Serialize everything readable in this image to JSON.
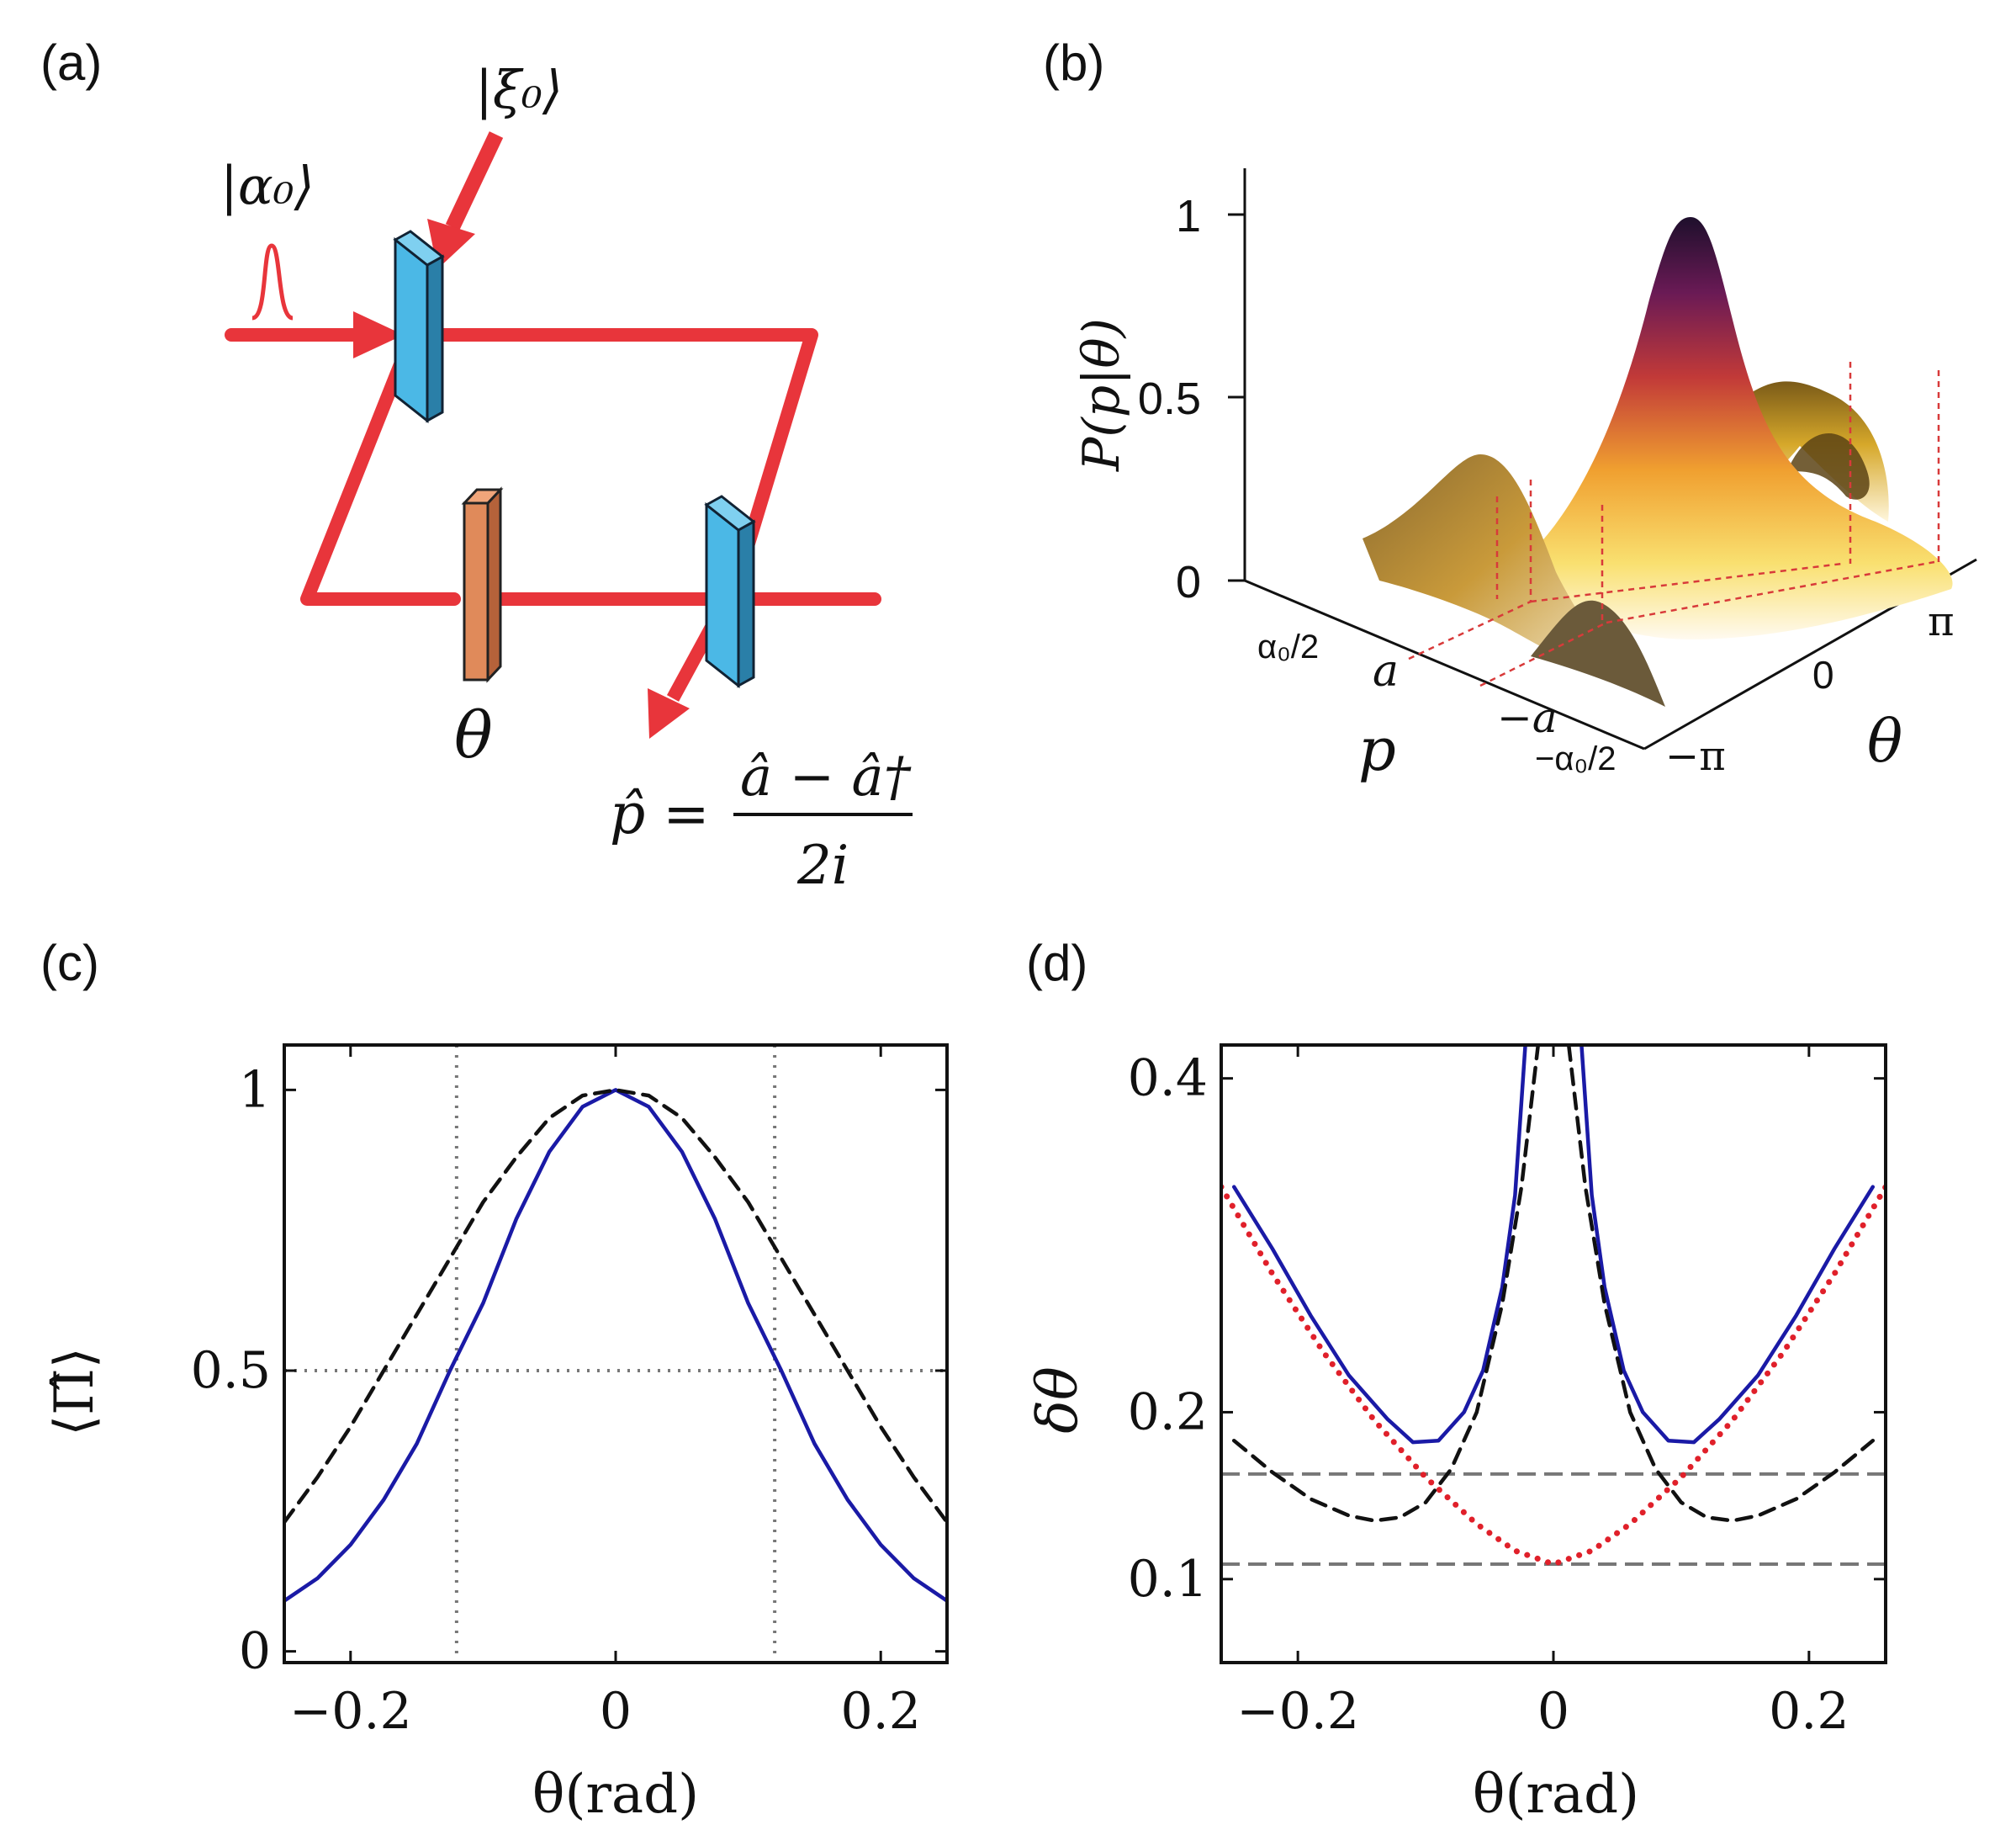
{
  "panels": {
    "a": {
      "label": "(a)",
      "input_state": "|α₀⟩",
      "squeezed_state": "|ξ₀⟩",
      "phase_label": "θ",
      "operator_lhs": "p̂ =",
      "operator_num": "â − â†",
      "operator_den": "2i"
    },
    "b": {
      "label": "(b)",
      "z_axis_label": "P(p|θ)",
      "z_ticks": [
        "1",
        "0.5",
        "0"
      ],
      "p_axis_label": "p",
      "p_ticks": [
        "α₀/2",
        "a",
        "−a",
        "−α₀/2"
      ],
      "theta_axis_label": "θ",
      "theta_ticks": [
        "π",
        "0",
        "−π"
      ]
    },
    "c": {
      "label": "(c)"
    },
    "d": {
      "label": "(d)"
    }
  },
  "colors": {
    "beam": "#e8353b",
    "splitter": "#4bb8e6",
    "phase_plate": "#e08a5a",
    "blue_curve": "#1a1aa6",
    "red_dotted": "#e0202a",
    "gray_dotted": "#777777"
  },
  "chart_data": [
    {
      "id": "c",
      "type": "line",
      "xlabel": "θ(rad)",
      "ylabel": "⟨Π̂⟩",
      "xlim": [
        -0.25,
        0.25
      ],
      "ylim": [
        -0.02,
        1.08
      ],
      "xticks": [
        -0.2,
        0,
        0.2
      ],
      "xtick_labels": [
        "−0.2",
        "0",
        "0.2"
      ],
      "yticks": [
        0,
        0.5,
        1
      ],
      "ytick_labels": [
        "0",
        "0.5",
        "1"
      ],
      "series": [
        {
          "name": "solid",
          "style": "solid",
          "color": "#1a1aa6",
          "x": [
            -0.25,
            -0.225,
            -0.2,
            -0.175,
            -0.15,
            -0.125,
            -0.1,
            -0.075,
            -0.05,
            -0.025,
            0,
            0.025,
            0.05,
            0.075,
            0.1,
            0.125,
            0.15,
            0.175,
            0.2,
            0.225,
            0.25
          ],
          "y": [
            0.09,
            0.13,
            0.19,
            0.27,
            0.37,
            0.5,
            0.62,
            0.77,
            0.89,
            0.97,
            1.0,
            0.97,
            0.89,
            0.77,
            0.62,
            0.5,
            0.37,
            0.27,
            0.19,
            0.13,
            0.09
          ]
        },
        {
          "name": "dashed",
          "style": "dashed",
          "color": "#111111",
          "x": [
            -0.25,
            -0.225,
            -0.2,
            -0.175,
            -0.15,
            -0.125,
            -0.1,
            -0.075,
            -0.05,
            -0.025,
            0,
            0.025,
            0.05,
            0.075,
            0.1,
            0.125,
            0.15,
            0.175,
            0.2,
            0.225,
            0.25
          ],
          "y": [
            0.23,
            0.31,
            0.4,
            0.5,
            0.6,
            0.7,
            0.8,
            0.88,
            0.95,
            0.99,
            1.0,
            0.99,
            0.95,
            0.88,
            0.8,
            0.7,
            0.6,
            0.5,
            0.4,
            0.31,
            0.23
          ]
        }
      ],
      "reference_lines": [
        {
          "orientation": "horizontal",
          "value": 0.5
        },
        {
          "orientation": "vertical",
          "value": -0.12
        },
        {
          "orientation": "vertical",
          "value": 0.12
        }
      ]
    },
    {
      "id": "d",
      "type": "line",
      "xlabel": "θ(rad)",
      "ylabel": "δθ",
      "xlim": [
        -0.26,
        0.26
      ],
      "ylim": [
        0.05,
        0.42
      ],
      "xticks": [
        -0.2,
        0,
        0.2
      ],
      "xtick_labels": [
        "−0.2",
        "0",
        "0.2"
      ],
      "yticks": [
        0.1,
        0.2,
        0.4
      ],
      "ytick_labels": [
        "0.1",
        "0.2",
        "0.4"
      ],
      "series": [
        {
          "name": "solid-left",
          "style": "solid",
          "color": "#1a1aa6",
          "x": [
            -0.25,
            -0.22,
            -0.19,
            -0.16,
            -0.13,
            -0.11,
            -0.09,
            -0.07,
            -0.055,
            -0.04,
            -0.03,
            -0.022
          ],
          "y": [
            0.335,
            0.298,
            0.258,
            0.222,
            0.196,
            0.182,
            0.183,
            0.2,
            0.225,
            0.275,
            0.33,
            0.42
          ]
        },
        {
          "name": "solid-right",
          "style": "solid",
          "color": "#1a1aa6",
          "x": [
            0.022,
            0.03,
            0.04,
            0.055,
            0.07,
            0.09,
            0.11,
            0.13,
            0.16,
            0.19,
            0.22,
            0.25
          ],
          "y": [
            0.42,
            0.33,
            0.275,
            0.225,
            0.2,
            0.183,
            0.182,
            0.196,
            0.222,
            0.258,
            0.298,
            0.335
          ]
        },
        {
          "name": "dashed-left",
          "style": "dashed",
          "color": "#111111",
          "x": [
            -0.25,
            -0.22,
            -0.19,
            -0.16,
            -0.14,
            -0.12,
            -0.1,
            -0.08,
            -0.06,
            -0.04,
            -0.025,
            -0.012
          ],
          "y": [
            0.183,
            0.164,
            0.148,
            0.138,
            0.135,
            0.137,
            0.146,
            0.166,
            0.2,
            0.265,
            0.335,
            0.42
          ]
        },
        {
          "name": "dashed-right",
          "style": "dashed",
          "color": "#111111",
          "x": [
            0.012,
            0.025,
            0.04,
            0.06,
            0.08,
            0.1,
            0.12,
            0.14,
            0.16,
            0.19,
            0.22,
            0.25
          ],
          "y": [
            0.42,
            0.335,
            0.265,
            0.2,
            0.166,
            0.146,
            0.137,
            0.135,
            0.138,
            0.148,
            0.164,
            0.183
          ]
        },
        {
          "name": "red-dotted",
          "style": "dotted",
          "color": "#e0202a",
          "x": [
            -0.26,
            -0.22,
            -0.18,
            -0.14,
            -0.1,
            -0.06,
            -0.03,
            0,
            0.03,
            0.06,
            0.1,
            0.14,
            0.18,
            0.22,
            0.26
          ],
          "y": [
            0.335,
            0.283,
            0.236,
            0.195,
            0.161,
            0.133,
            0.117,
            0.109,
            0.117,
            0.133,
            0.161,
            0.195,
            0.236,
            0.283,
            0.335
          ]
        }
      ],
      "reference_lines": [
        {
          "orientation": "horizontal",
          "value": 0.163
        },
        {
          "orientation": "horizontal",
          "value": 0.109
        }
      ]
    }
  ]
}
